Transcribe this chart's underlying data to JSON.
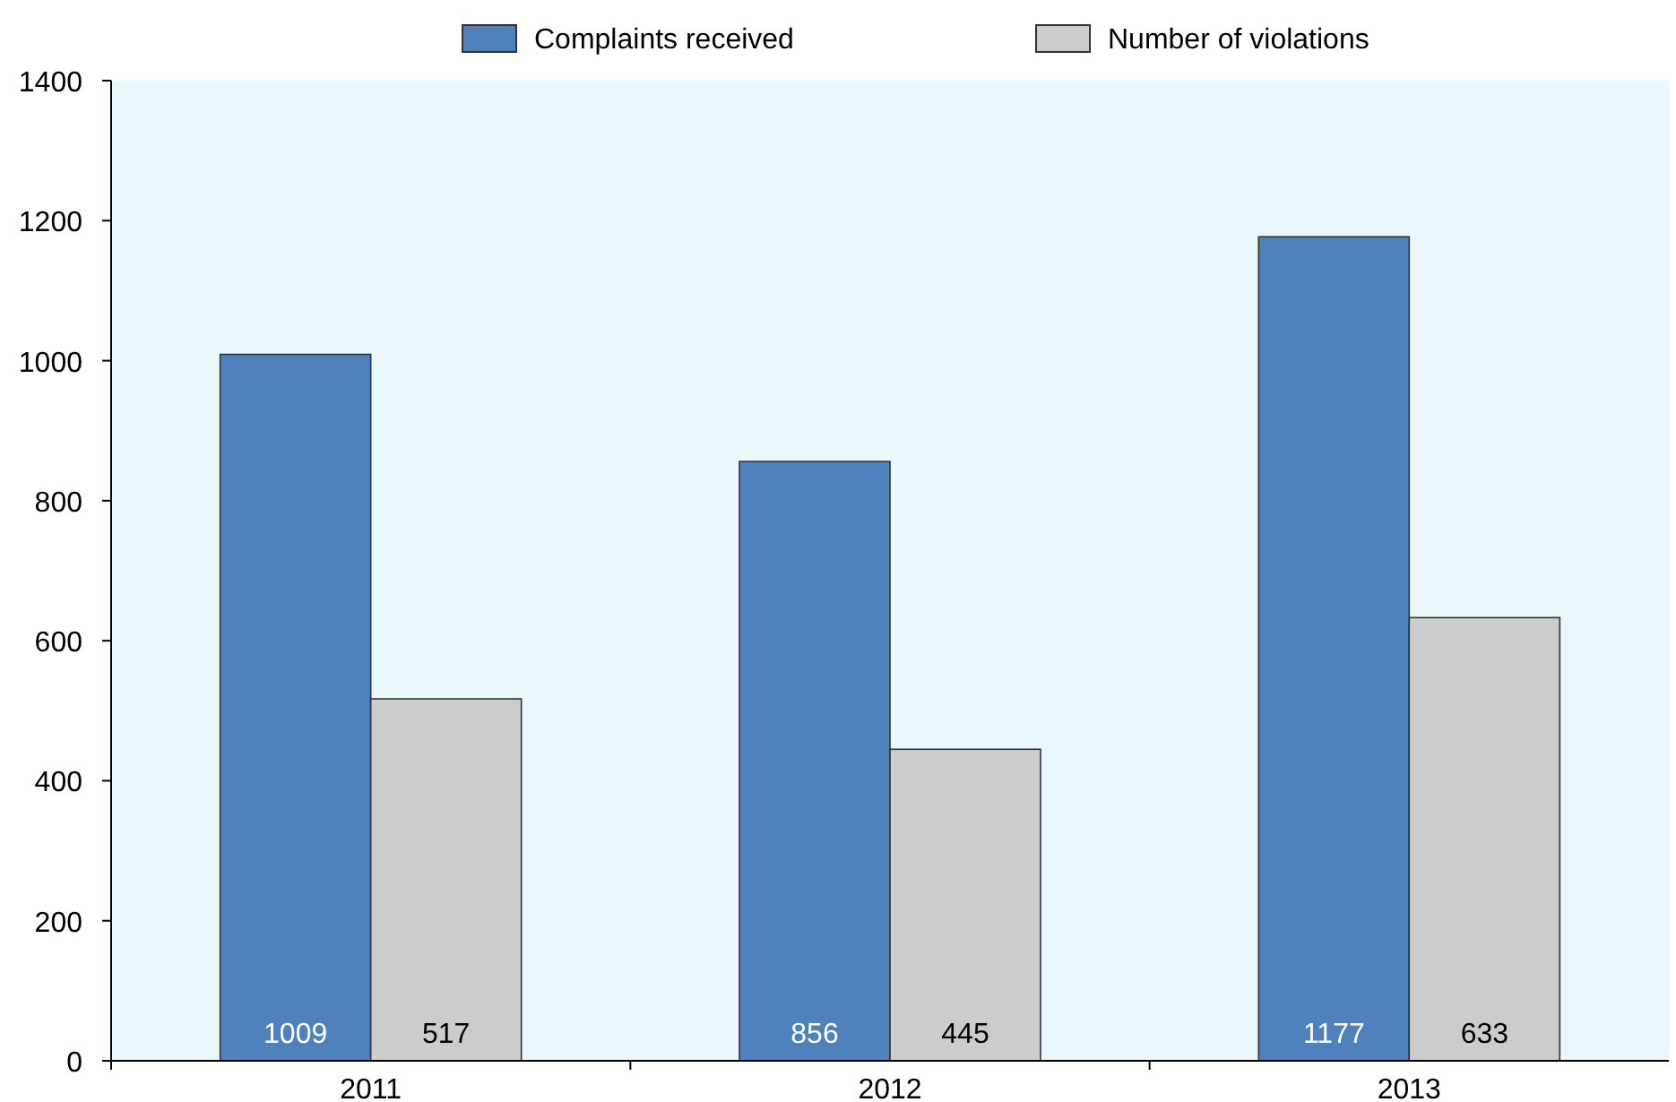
{
  "chart_data": {
    "type": "bar",
    "categories": [
      "2011",
      "2012",
      "2013"
    ],
    "series": [
      {
        "name": "Complaints received",
        "color": "#4f81bd",
        "values": [
          1009,
          856,
          1177
        ]
      },
      {
        "name": "Number of violations",
        "color": "#cccccc",
        "values": [
          517,
          445,
          633
        ]
      }
    ],
    "ylim": [
      0,
      1400
    ],
    "yticks": [
      0,
      200,
      400,
      600,
      800,
      1000,
      1200,
      1400
    ],
    "data_labels": true,
    "legend": "top",
    "grid": false
  }
}
